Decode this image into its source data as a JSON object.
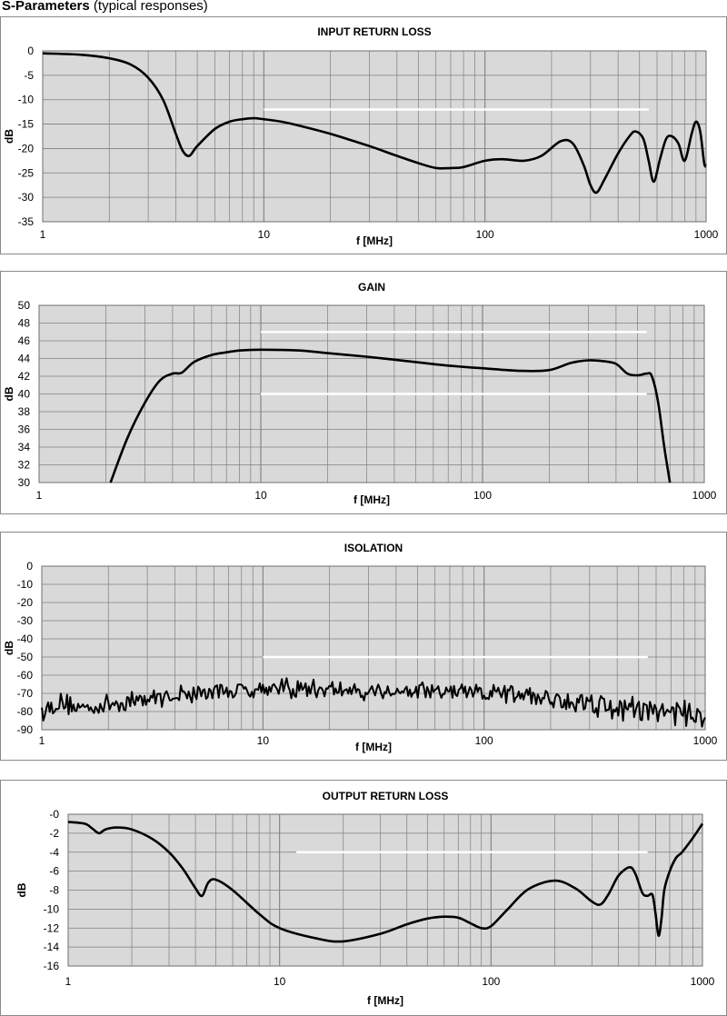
{
  "header": {
    "title_bold": "S-Parameters",
    "title_rest": " (typical responses)"
  },
  "colors": {
    "plot_bg": "#d9d9d9",
    "grid": "#7f7f7f",
    "curve": "#000000",
    "limit_line": "#ffffff"
  },
  "chart_data": [
    {
      "type": "line",
      "title": "INPUT RETURN LOSS",
      "xlabel": "f [MHz]",
      "ylabel": "dB",
      "x_scale": "log",
      "xlim": [
        1,
        1000
      ],
      "ylim": [
        -35,
        0
      ],
      "yticks": [
        0,
        -5,
        -10,
        -15,
        -20,
        -25,
        -30,
        -35
      ],
      "ytick_labels": [
        "0",
        "-5",
        "-10",
        "-15",
        "-20",
        "-25",
        "-30",
        "-35"
      ],
      "xticks": [
        1,
        10,
        100,
        1000
      ],
      "xtick_labels": [
        "1",
        "10",
        "100",
        "1000"
      ],
      "grid": true,
      "limit_lines": [
        {
          "x": [
            10,
            550
          ],
          "y": -12
        }
      ],
      "series": [
        {
          "x": [
            1,
            1.5,
            2,
            2.5,
            3,
            3.5,
            4,
            4.3,
            4.6,
            5,
            6,
            7,
            8,
            9,
            10,
            12,
            15,
            20,
            30,
            40,
            50,
            60,
            70,
            80,
            100,
            120,
            150,
            180,
            220,
            250,
            280,
            300,
            320,
            350,
            400,
            450,
            480,
            520,
            550,
            580,
            620,
            660,
            700,
            750,
            800,
            860,
            900,
            940,
            980,
            1000
          ],
          "y": [
            -0.5,
            -0.8,
            -1.5,
            -2.8,
            -5.5,
            -10,
            -17,
            -20.5,
            -21.5,
            -19.5,
            -16,
            -14.5,
            -14,
            -13.8,
            -14,
            -14.5,
            -15.5,
            -17,
            -19.5,
            -21.5,
            -23,
            -24,
            -24,
            -23.8,
            -22.5,
            -22.2,
            -22.5,
            -21.5,
            -18.5,
            -19,
            -23.5,
            -27.5,
            -29,
            -26,
            -21,
            -17.5,
            -16.5,
            -18,
            -22.5,
            -26.8,
            -22,
            -18,
            -17.5,
            -19,
            -22.5,
            -17,
            -14.5,
            -16.5,
            -23,
            -23.5
          ]
        }
      ]
    },
    {
      "type": "line",
      "title": "GAIN",
      "xlabel": "f [MHz]",
      "ylabel": "dB",
      "x_scale": "log",
      "xlim": [
        1,
        1000
      ],
      "ylim": [
        30,
        50
      ],
      "yticks": [
        30,
        32,
        34,
        36,
        38,
        40,
        42,
        44,
        46,
        48,
        50
      ],
      "ytick_labels": [
        "30",
        "32",
        "34",
        "36",
        "38",
        "40",
        "42",
        "44",
        "46",
        "48",
        "50"
      ],
      "xticks": [
        1,
        10,
        100,
        1000
      ],
      "xtick_labels": [
        "1",
        "10",
        "100",
        "1000"
      ],
      "grid": true,
      "limit_lines": [
        {
          "x": [
            10,
            550
          ],
          "y": 47
        },
        {
          "x": [
            10,
            550
          ],
          "y": 40
        }
      ],
      "series": [
        {
          "x": [
            2.1,
            2.5,
            3,
            3.5,
            4,
            4.4,
            5,
            6,
            7,
            8,
            10,
            15,
            20,
            30,
            50,
            70,
            100,
            150,
            200,
            250,
            300,
            350,
            400,
            450,
            500,
            550,
            580,
            620,
            660,
            700
          ],
          "y": [
            30,
            35,
            39,
            41.5,
            42.3,
            42.4,
            43.6,
            44.4,
            44.7,
            44.9,
            45,
            44.9,
            44.6,
            44.2,
            43.6,
            43.2,
            42.9,
            42.6,
            42.7,
            43.5,
            43.8,
            43.7,
            43.4,
            42.3,
            42.1,
            42.3,
            42,
            39,
            34,
            30
          ]
        }
      ]
    },
    {
      "type": "line",
      "title": "ISOLATION",
      "xlabel": "f [MHz]",
      "ylabel": "dB",
      "x_scale": "log",
      "xlim": [
        1,
        1000
      ],
      "ylim": [
        -90,
        0
      ],
      "yticks": [
        0,
        -10,
        -20,
        -30,
        -40,
        -50,
        -60,
        -70,
        -80,
        -90
      ],
      "ytick_labels": [
        "0",
        "-10",
        "-20",
        "-30",
        "-40",
        "-50",
        "-60",
        "-70",
        "-80",
        "-90"
      ],
      "xticks": [
        1,
        10,
        100,
        1000
      ],
      "xtick_labels": [
        "1",
        "10",
        "100",
        "1000"
      ],
      "grid": true,
      "limit_lines": [
        {
          "x": [
            10,
            550
          ],
          "y": -50
        }
      ],
      "series": [
        {
          "x": [
            1,
            1.2,
            1.5,
            2,
            3,
            4,
            6,
            10,
            20,
            40,
            70,
            100,
            150,
            200,
            300,
            400,
            600,
            1000
          ],
          "y": [
            -80,
            -75,
            -78,
            -76,
            -73,
            -71,
            -69,
            -67,
            -68,
            -69,
            -69,
            -70,
            -71,
            -73,
            -74,
            -78,
            -80,
            -81
          ],
          "noise_amplitude": 6
        }
      ]
    },
    {
      "type": "line",
      "title": "OUTPUT RETURN LOSS",
      "xlabel": "f [MHz]",
      "ylabel": "dB",
      "x_scale": "log",
      "xlim": [
        1,
        1000
      ],
      "ylim": [
        -16,
        0
      ],
      "yticks": [
        0,
        -2,
        -4,
        -6,
        -8,
        -10,
        -12,
        -14,
        -16
      ],
      "ytick_labels": [
        "-0",
        "-2",
        "-4",
        "-6",
        "-8",
        "-10",
        "-12",
        "-14",
        "-16"
      ],
      "xticks": [
        1,
        10,
        100,
        1000
      ],
      "xtick_labels": [
        "1",
        "10",
        "100",
        "1000"
      ],
      "grid": true,
      "limit_lines": [
        {
          "x": [
            12,
            550
          ],
          "y": -4
        }
      ],
      "series": [
        {
          "x": [
            1,
            1.2,
            1.3,
            1.4,
            1.5,
            1.7,
            2,
            2.5,
            3,
            3.5,
            4,
            4.3,
            4.6,
            5,
            6,
            8,
            10,
            15,
            20,
            30,
            40,
            50,
            60,
            70,
            80,
            90,
            100,
            120,
            150,
            200,
            250,
            300,
            330,
            360,
            400,
            450,
            480,
            520,
            550,
            580,
            600,
            620,
            640,
            660,
            700,
            750,
            800,
            900,
            1000
          ],
          "y": [
            -0.8,
            -1,
            -1.5,
            -2,
            -1.6,
            -1.4,
            -1.6,
            -2.6,
            -4,
            -5.8,
            -7.8,
            -8.6,
            -7.2,
            -6.9,
            -8,
            -10.5,
            -12,
            -13.1,
            -13.4,
            -12.6,
            -11.6,
            -11,
            -10.8,
            -10.9,
            -11.5,
            -12,
            -11.8,
            -10,
            -7.9,
            -7,
            -7.8,
            -9.2,
            -9.5,
            -8.4,
            -6.5,
            -5.6,
            -6.2,
            -8.3,
            -8.6,
            -8.5,
            -10.5,
            -12.8,
            -11,
            -8,
            -6,
            -4.6,
            -4,
            -2.5,
            -1
          ]
        }
      ]
    }
  ]
}
